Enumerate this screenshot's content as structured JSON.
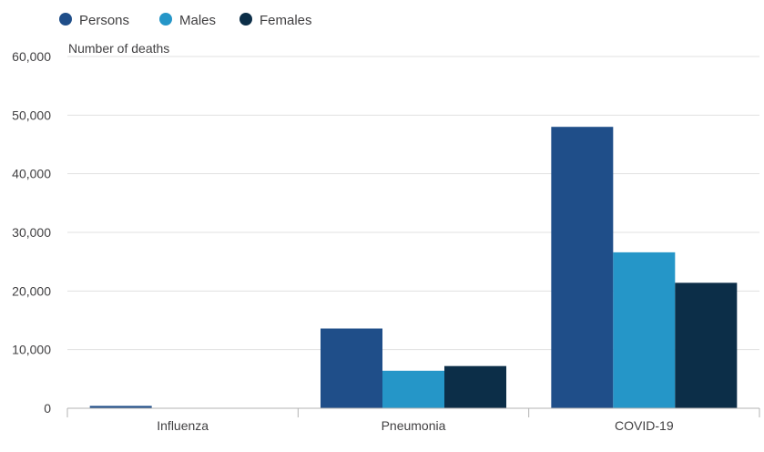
{
  "chart_data": {
    "type": "bar",
    "ylabel": "Number of deaths",
    "categories": [
      "Influenza",
      "Pneumonia",
      "COVID-19"
    ],
    "series": [
      {
        "name": "Persons",
        "color": "#1f4e89",
        "values": [
          400,
          13600,
          48000
        ]
      },
      {
        "name": "Males",
        "color": "#2596c8",
        "values": [
          0,
          6400,
          26600
        ]
      },
      {
        "name": "Females",
        "color": "#0c2e48",
        "values": [
          0,
          7200,
          21400
        ]
      }
    ],
    "ylim": [
      0,
      60000
    ],
    "yticks": [
      "0",
      "10,000",
      "20,000",
      "30,000",
      "40,000",
      "50,000",
      "60,000"
    ],
    "grid": true,
    "legend_position": "top-left"
  }
}
